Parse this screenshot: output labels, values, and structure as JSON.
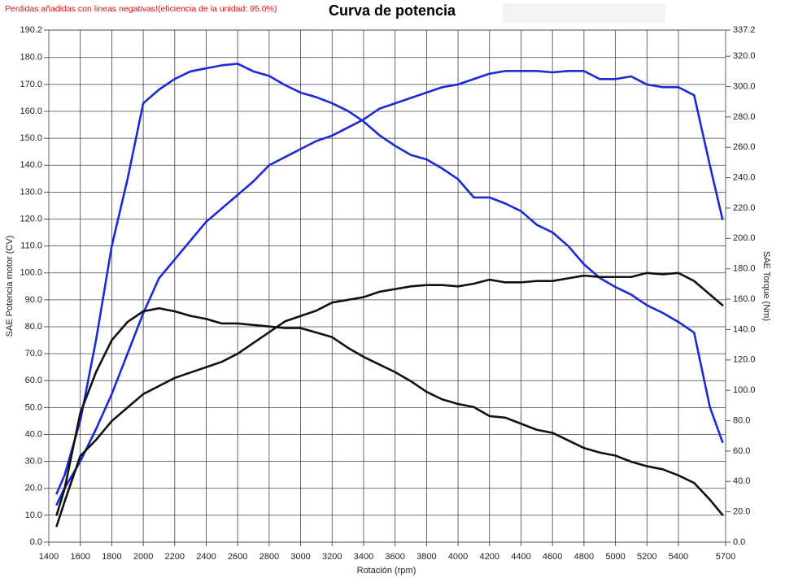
{
  "chart_data": {
    "type": "line",
    "title": "Curva de potencia",
    "annotation": "Perdidas añadidas con lineas negativas!(eficiencia de la unidad: 95.0%)",
    "xlabel": "Rotación (rpm)",
    "ylabel": "SAE Potencia motor (CV)",
    "y2label": "SAE Torque (Nm)",
    "grid": true,
    "x": [
      1450,
      1500,
      1600,
      1700,
      1800,
      1900,
      2000,
      2100,
      2200,
      2300,
      2400,
      2500,
      2600,
      2700,
      2800,
      2900,
      3000,
      3100,
      3200,
      3300,
      3400,
      3500,
      3600,
      3700,
      3800,
      3900,
      4000,
      4100,
      4200,
      4300,
      4400,
      4500,
      4600,
      4700,
      4800,
      4900,
      5000,
      5100,
      5200,
      5300,
      5400,
      5500,
      5600,
      5680
    ],
    "xlim": [
      1400,
      5700
    ],
    "xticks": [
      1400,
      1600,
      1800,
      2000,
      2200,
      2400,
      2600,
      2800,
      3000,
      3200,
      3400,
      3600,
      3800,
      4000,
      4200,
      4400,
      4600,
      4800,
      5000,
      5200,
      5400,
      5700
    ],
    "ylim": [
      0,
      190.2
    ],
    "yticks": [
      {
        "value": 0,
        "label": "0.0"
      },
      {
        "value": 10,
        "label": "10.0"
      },
      {
        "value": 20,
        "label": "20.0"
      },
      {
        "value": 30,
        "label": "30.0"
      },
      {
        "value": 40,
        "label": "40.0"
      },
      {
        "value": 50,
        "label": "50.0"
      },
      {
        "value": 60,
        "label": "60.0"
      },
      {
        "value": 70,
        "label": "70.0"
      },
      {
        "value": 80,
        "label": "80.0"
      },
      {
        "value": 90,
        "label": "90.0"
      },
      {
        "value": 100,
        "label": "100.0"
      },
      {
        "value": 110,
        "label": "110.0"
      },
      {
        "value": 120,
        "label": "120.0"
      },
      {
        "value": 130,
        "label": "130.0"
      },
      {
        "value": 140,
        "label": "140.0"
      },
      {
        "value": 150,
        "label": "150.0"
      },
      {
        "value": 160,
        "label": "160.0"
      },
      {
        "value": 170,
        "label": "170.0"
      },
      {
        "value": 180,
        "label": "180.0"
      },
      190.2
    ],
    "y2lim": [
      0,
      337.2
    ],
    "y2ticks": [
      {
        "value": 0,
        "label": "0.0"
      },
      {
        "value": 20,
        "label": "20.0"
      },
      {
        "value": 40,
        "label": "40.0"
      },
      {
        "value": 60,
        "label": "60.0"
      },
      {
        "value": 80,
        "label": "80.0"
      },
      {
        "value": 100,
        "label": "100.0"
      },
      {
        "value": 120,
        "label": "120.0"
      },
      {
        "value": 140,
        "label": "140.0"
      },
      {
        "value": 160,
        "label": "160.0"
      },
      {
        "value": 180,
        "label": "180.0"
      },
      {
        "value": 200,
        "label": "200.0"
      },
      {
        "value": 220,
        "label": "220.0"
      },
      {
        "value": 240,
        "label": "240.0"
      },
      {
        "value": 260,
        "label": "260.0"
      },
      {
        "value": 280,
        "label": "280.0"
      },
      {
        "value": 300,
        "label": "300.0"
      },
      {
        "value": 320,
        "label": "320.0"
      },
      337.2
    ],
    "series": [
      {
        "color": "#1a2ad4",
        "axis": "y",
        "values": [
          14,
          20,
          30,
          42,
          55,
          70,
          85,
          98,
          105,
          112,
          119,
          124,
          129,
          134,
          140,
          143,
          146,
          149,
          151,
          154,
          157,
          161,
          163,
          165,
          167,
          169,
          170,
          172,
          174,
          175,
          175,
          175,
          174.5,
          175,
          175,
          172,
          172,
          173,
          170,
          169,
          169,
          166,
          140,
          120
        ]
      },
      {
        "color": "#1a2ad4",
        "axis": "y2",
        "values": [
          32,
          44,
          80,
          133,
          195,
          239,
          289,
          298,
          305,
          310,
          312,
          314,
          315,
          310,
          307,
          301,
          296,
          293,
          289,
          284,
          277,
          268,
          261,
          255,
          252,
          246,
          239,
          227,
          227,
          223,
          218,
          209,
          204,
          195,
          183,
          174,
          168,
          163,
          156,
          151,
          145,
          138,
          89,
          66
        ]
      },
      {
        "color": "#111111",
        "axis": "y",
        "values": [
          6,
          15,
          32,
          38,
          45,
          50,
          55,
          58,
          61,
          63,
          65,
          67,
          70,
          74,
          78,
          82,
          84,
          86,
          89,
          90,
          91,
          93,
          94,
          95,
          95.5,
          95.5,
          95,
          96,
          97.5,
          96.5,
          96.5,
          97,
          97,
          98,
          99,
          98.5,
          98.5,
          98.5,
          100,
          99.5,
          100,
          97,
          92,
          88
        ]
      },
      {
        "color": "#111111",
        "axis": "y2",
        "values": [
          18,
          35,
          85,
          112,
          133,
          145,
          152,
          154,
          152,
          149,
          147,
          144,
          144,
          143,
          142,
          141,
          141,
          138,
          135,
          128,
          122,
          117,
          112,
          106,
          99,
          94,
          91,
          89,
          83,
          82,
          78,
          74,
          72,
          67,
          62,
          59,
          57,
          53,
          50,
          48,
          44,
          39,
          28,
          18
        ]
      }
    ]
  }
}
